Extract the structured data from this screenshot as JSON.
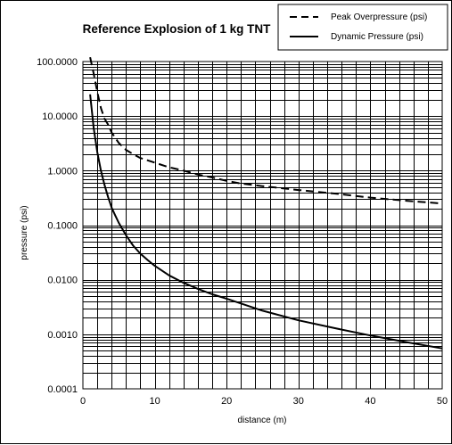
{
  "chart_data": {
    "type": "line",
    "title": "Reference Explosion of 1 kg TNT",
    "xlabel": "distance (m)",
    "ylabel": "pressure (psi)",
    "xlim": [
      0,
      50
    ],
    "ylim": [
      0.0001,
      100
    ],
    "yscale": "log",
    "grid": true,
    "legend_position": "top-right",
    "x_ticks": [
      "0",
      "10",
      "20",
      "30",
      "40",
      "50"
    ],
    "y_ticks": [
      "0.0001",
      "0.0010",
      "0.0100",
      "0.1000",
      "1.0000",
      "10.0000",
      "100.0000"
    ],
    "series": [
      {
        "name": "Peak Overpressure (psi)",
        "style": "dashed",
        "x": [
          1.0,
          1.5,
          2,
          2.5,
          3,
          3.5,
          4,
          5,
          6,
          7,
          8,
          10,
          12,
          14,
          16,
          18,
          20,
          22,
          25,
          30,
          35,
          40,
          45,
          50
        ],
        "values": [
          120,
          60,
          28,
          14,
          9,
          7,
          5,
          3.2,
          2.4,
          2.0,
          1.7,
          1.4,
          1.15,
          1.0,
          0.85,
          0.75,
          0.65,
          0.58,
          0.52,
          0.44,
          0.38,
          0.32,
          0.28,
          0.25
        ]
      },
      {
        "name": "Dynamic Pressure (psi)",
        "style": "solid",
        "x": [
          1.0,
          1.5,
          2,
          2.5,
          3,
          3.5,
          4,
          4.5,
          5,
          6,
          7,
          8,
          9,
          10,
          12,
          14,
          16,
          18,
          20,
          25,
          30,
          35,
          40,
          45,
          50
        ],
        "values": [
          25,
          6,
          2.2,
          1.0,
          0.55,
          0.33,
          0.21,
          0.15,
          0.11,
          0.065,
          0.042,
          0.03,
          0.023,
          0.018,
          0.012,
          0.0088,
          0.0068,
          0.0054,
          0.0045,
          0.0027,
          0.0018,
          0.0013,
          0.00095,
          0.00072,
          0.00055
        ]
      }
    ]
  }
}
